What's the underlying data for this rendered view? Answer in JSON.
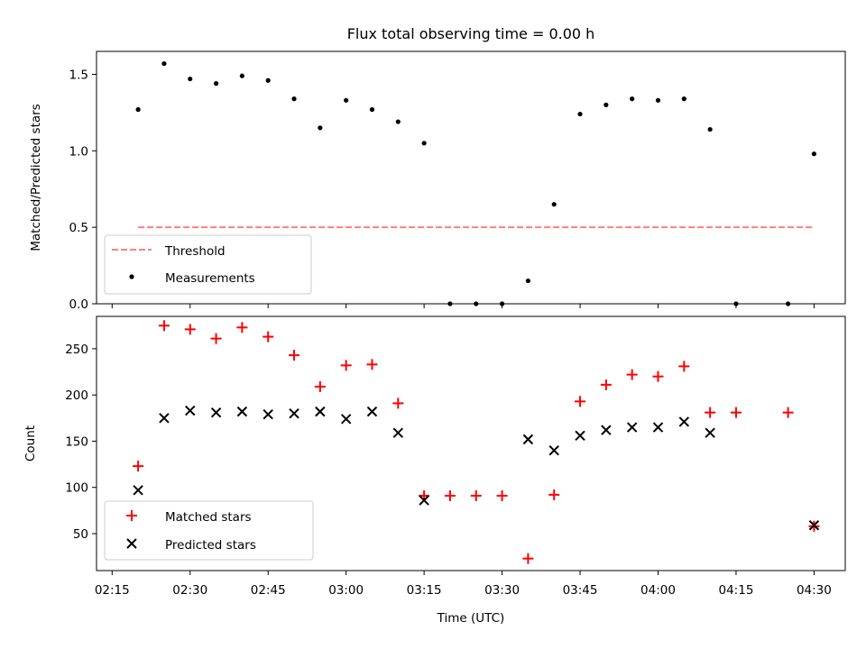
{
  "chart_data": [
    {
      "type": "scatter",
      "title": "Flux total observing time = 0.00 h",
      "xlabel": "",
      "ylabel": "Matched/Predicted stars",
      "ylim": [
        0,
        1.65
      ],
      "yticks": [
        0,
        0.5,
        1.0,
        1.5
      ],
      "ytick_labels": [
        "0.0",
        "0.5",
        "1.0",
        "1.5"
      ],
      "legend_position": "lower-left",
      "series": [
        {
          "name": "Threshold",
          "kind": "dashed-line",
          "color": "#ff7f7f",
          "x": [
            "02:20",
            "04:30"
          ],
          "y": [
            0.5,
            0.5
          ]
        },
        {
          "name": "Measurements",
          "kind": "point",
          "color": "#000000",
          "x": [
            "02:20",
            "02:25",
            "02:30",
            "02:35",
            "02:40",
            "02:45",
            "02:50",
            "02:55",
            "03:00",
            "03:05",
            "03:10",
            "03:15",
            "03:20",
            "03:25",
            "03:30",
            "03:35",
            "03:40",
            "03:45",
            "03:50",
            "03:55",
            "04:00",
            "04:05",
            "04:10",
            "04:15",
            "04:25",
            "04:30"
          ],
          "y": [
            1.27,
            1.57,
            1.47,
            1.44,
            1.49,
            1.46,
            1.34,
            1.15,
            1.33,
            1.27,
            1.19,
            1.05,
            0.0,
            0.0,
            0.0,
            0.15,
            0.65,
            1.24,
            1.3,
            1.34,
            1.33,
            1.34,
            1.14,
            0.0,
            0.0,
            0.98
          ]
        }
      ]
    },
    {
      "type": "scatter",
      "title": "",
      "xlabel": "Time (UTC)",
      "ylabel": "Count",
      "ylim": [
        10,
        285
      ],
      "yticks": [
        50,
        100,
        150,
        200,
        250
      ],
      "ytick_labels": [
        "50",
        "100",
        "150",
        "200",
        "250"
      ],
      "xlim": [
        "02:12",
        "04:36"
      ],
      "xticks": [
        "02:15",
        "02:30",
        "02:45",
        "03:00",
        "03:15",
        "03:30",
        "03:45",
        "04:00",
        "04:15",
        "04:30"
      ],
      "legend_position": "lower-left",
      "series": [
        {
          "name": "Matched stars",
          "kind": "plus",
          "color": "#ff0000",
          "x": [
            "02:20",
            "02:25",
            "02:30",
            "02:35",
            "02:40",
            "02:45",
            "02:50",
            "02:55",
            "03:00",
            "03:05",
            "03:10",
            "03:15",
            "03:20",
            "03:25",
            "03:30",
            "03:35",
            "03:40",
            "03:45",
            "03:50",
            "03:55",
            "04:00",
            "04:05",
            "04:10",
            "04:15",
            "04:25",
            "04:30"
          ],
          "y": [
            123,
            275,
            271,
            261,
            273,
            263,
            243,
            209,
            232,
            233,
            191,
            91,
            91,
            91,
            91,
            23,
            92,
            193,
            211,
            222,
            220,
            231,
            181,
            181,
            181,
            58
          ]
        },
        {
          "name": "Predicted stars",
          "kind": "x",
          "color": "#000000",
          "x": [
            "02:20",
            "02:25",
            "02:30",
            "02:35",
            "02:40",
            "02:45",
            "02:50",
            "02:55",
            "03:00",
            "03:05",
            "03:10",
            "03:15",
            "03:35",
            "03:40",
            "03:45",
            "03:50",
            "03:55",
            "04:00",
            "04:05",
            "04:10",
            "04:30"
          ],
          "y": [
            97,
            175,
            183,
            181,
            182,
            179,
            180,
            182,
            174,
            182,
            159,
            86,
            152,
            140,
            156,
            162,
            165,
            165,
            171,
            159,
            59
          ]
        }
      ]
    }
  ]
}
